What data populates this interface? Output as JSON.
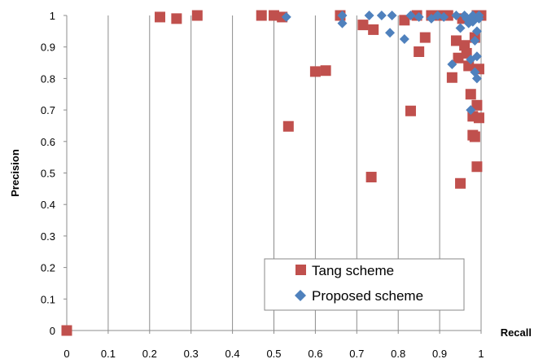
{
  "chart_data": {
    "type": "scatter",
    "xlabel": "Recall",
    "ylabel": "Precision",
    "xlim": [
      0,
      1
    ],
    "ylim": [
      0,
      1
    ],
    "x_ticks": [
      "0",
      "0.1",
      "0.2",
      "0.3",
      "0.4",
      "0.5",
      "0.6",
      "0.7",
      "0.8",
      "0.9",
      "1"
    ],
    "y_ticks": [
      "0",
      "0.1",
      "0.2",
      "0.3",
      "0.4",
      "0.5",
      "0.6",
      "0.7",
      "0.8",
      "0.9",
      "1"
    ],
    "grid": "vertical",
    "legend_position": "bottom-right",
    "series": [
      {
        "name": "Tang scheme",
        "marker": "square",
        "color": "#c0504d",
        "points": [
          [
            0.0,
            0.0
          ],
          [
            0.225,
            0.995
          ],
          [
            0.265,
            0.99
          ],
          [
            0.315,
            1.0
          ],
          [
            0.47,
            1.0
          ],
          [
            0.5,
            1.0
          ],
          [
            0.52,
            0.995
          ],
          [
            0.535,
            0.648
          ],
          [
            0.6,
            0.822
          ],
          [
            0.625,
            0.825
          ],
          [
            0.66,
            1.0
          ],
          [
            0.715,
            0.97
          ],
          [
            0.735,
            0.487
          ],
          [
            0.74,
            0.955
          ],
          [
            0.815,
            0.985
          ],
          [
            0.83,
            0.697
          ],
          [
            0.845,
            1.0
          ],
          [
            0.85,
            0.885
          ],
          [
            0.865,
            0.93
          ],
          [
            0.88,
            1.0
          ],
          [
            0.9,
            1.0
          ],
          [
            0.92,
            1.0
          ],
          [
            0.93,
            0.803
          ],
          [
            0.94,
            0.92
          ],
          [
            0.945,
            0.865
          ],
          [
            0.95,
            0.467
          ],
          [
            0.955,
            0.99
          ],
          [
            0.96,
            0.905
          ],
          [
            0.965,
            0.88
          ],
          [
            0.97,
            0.84
          ],
          [
            0.975,
            0.75
          ],
          [
            0.98,
            0.68
          ],
          [
            0.98,
            0.62
          ],
          [
            0.985,
            0.615
          ],
          [
            0.985,
            0.93
          ],
          [
            0.99,
            0.52
          ],
          [
            0.99,
            0.715
          ],
          [
            0.99,
            1.0
          ],
          [
            0.995,
            0.675
          ],
          [
            0.995,
            0.83
          ],
          [
            1.0,
            1.0
          ]
        ]
      },
      {
        "name": "Proposed scheme",
        "marker": "diamond",
        "color": "#4f81bd",
        "points": [
          [
            0.53,
            0.995
          ],
          [
            0.665,
            1.0
          ],
          [
            0.665,
            0.975
          ],
          [
            0.73,
            1.0
          ],
          [
            0.76,
            1.0
          ],
          [
            0.78,
            0.945
          ],
          [
            0.785,
            1.0
          ],
          [
            0.815,
            0.925
          ],
          [
            0.83,
            1.0
          ],
          [
            0.85,
            0.995
          ],
          [
            0.88,
            0.99
          ],
          [
            0.895,
            1.0
          ],
          [
            0.91,
            0.995
          ],
          [
            0.93,
            0.845
          ],
          [
            0.94,
            1.0
          ],
          [
            0.95,
            0.96
          ],
          [
            0.96,
            1.0
          ],
          [
            0.965,
            0.99
          ],
          [
            0.97,
            0.975
          ],
          [
            0.975,
            0.86
          ],
          [
            0.975,
            0.7
          ],
          [
            0.98,
            1.0
          ],
          [
            0.98,
            0.98
          ],
          [
            0.985,
            0.82
          ],
          [
            0.985,
            0.92
          ],
          [
            0.99,
            0.8
          ],
          [
            0.99,
            0.87
          ],
          [
            0.99,
            0.95
          ],
          [
            0.995,
            1.0
          ],
          [
            0.995,
            0.99
          ]
        ]
      }
    ]
  }
}
